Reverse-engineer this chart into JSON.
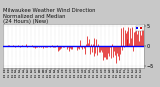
{
  "title_line1": "Milwaukee Weather Wind Direction",
  "title_line2": "Normalized and Median",
  "title_line3": "(24 Hours) (New)",
  "title_fontsize": 3.8,
  "background_color": "#c8c8c8",
  "plot_bg_color": "#ffffff",
  "grid_color": "#c0c0c0",
  "bar_color": "#dd0000",
  "median_line_color": "#0000ff",
  "median_value": 0.15,
  "ylim": [
    -5.5,
    5.5
  ],
  "yticks": [
    -5,
    0,
    5
  ],
  "ylabel_fontsize": 3.5,
  "x_tick_fontsize": 1.8,
  "n_points": 144,
  "figsize": [
    1.6,
    0.87
  ],
  "dpi": 100
}
